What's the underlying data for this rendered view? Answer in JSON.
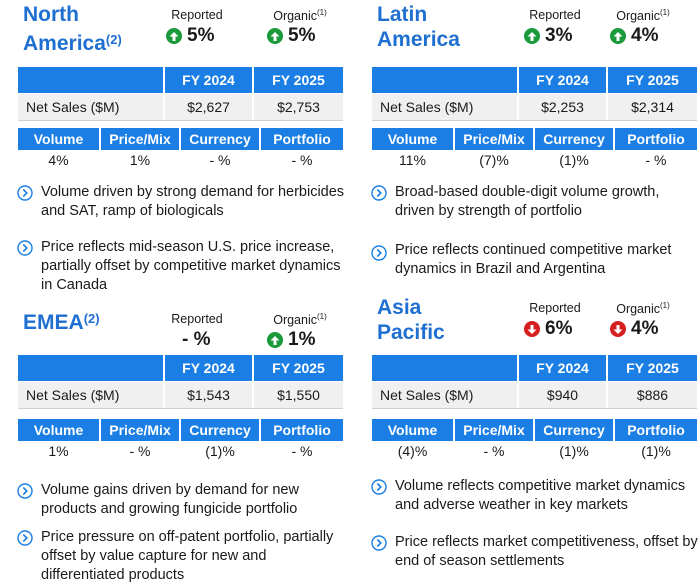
{
  "reported_label": "Reported",
  "organic_label": "Organic",
  "organic_sup": "(1)",
  "table_headers": [
    "FY 2024",
    "FY 2025"
  ],
  "row_label": "Net Sales ($M)",
  "driver_headers": [
    "Volume",
    "Price/Mix",
    "Currency",
    "Portfolio"
  ],
  "colors": {
    "accent": "#1a7ee5",
    "title": "#1f6fd1",
    "up": "#1b9a3c",
    "down": "#d62020"
  },
  "regions": [
    {
      "key": "na",
      "title_line1": "North",
      "title_line2": "America",
      "title_sup": "(2)",
      "reported": "5%",
      "reported_dir": "up",
      "organic": "5%",
      "organic_dir": "up",
      "fy2024": "$2,627",
      "fy2025": "$2,753",
      "drivers": [
        "4%",
        "1%",
        "- %",
        "- %"
      ],
      "bullets": [
        "Volume driven by strong demand for herbicides and SAT, ramp of biologicals",
        "Price reflects mid-season U.S. price increase, partially offset by competitive market dynamics in Canada"
      ]
    },
    {
      "key": "la",
      "title_line1": "Latin",
      "title_line2": "America",
      "title_sup": "",
      "reported": "3%",
      "reported_dir": "up",
      "organic": "4%",
      "organic_dir": "up",
      "fy2024": "$2,253",
      "fy2025": "$2,314",
      "drivers": [
        "11%",
        "(7)%",
        "(1)%",
        "- %"
      ],
      "bullets": [
        "Broad-based double-digit volume growth, driven by strength of portfolio",
        "Price reflects continued competitive market dynamics in Brazil and Argentina"
      ]
    },
    {
      "key": "emea",
      "title_line1": "EMEA",
      "title_line2": "",
      "title_sup": "(2)",
      "reported": "- %",
      "reported_dir": "none",
      "organic": "1%",
      "organic_dir": "up",
      "fy2024": "$1,543",
      "fy2025": "$1,550",
      "drivers": [
        "1%",
        "- %",
        "(1)%",
        "- %"
      ],
      "bullets": [
        "Volume gains driven by demand for new products and growing fungicide portfolio",
        "Price pressure on off-patent portfolio, partially offset by value capture for new and differentiated products"
      ]
    },
    {
      "key": "ap",
      "title_line1": "Asia",
      "title_line2": "Pacific",
      "title_sup": "",
      "reported": "6%",
      "reported_dir": "down",
      "organic": "4%",
      "organic_dir": "down",
      "fy2024": "$940",
      "fy2025": "$886",
      "drivers": [
        "(4)%",
        "- %",
        "(1)%",
        "(1)%"
      ],
      "bullets": [
        "Volume reflects competitive market dynamics and adverse weather in key markets",
        "Price reflects market competitiveness, offset by end of season settlements"
      ]
    }
  ]
}
